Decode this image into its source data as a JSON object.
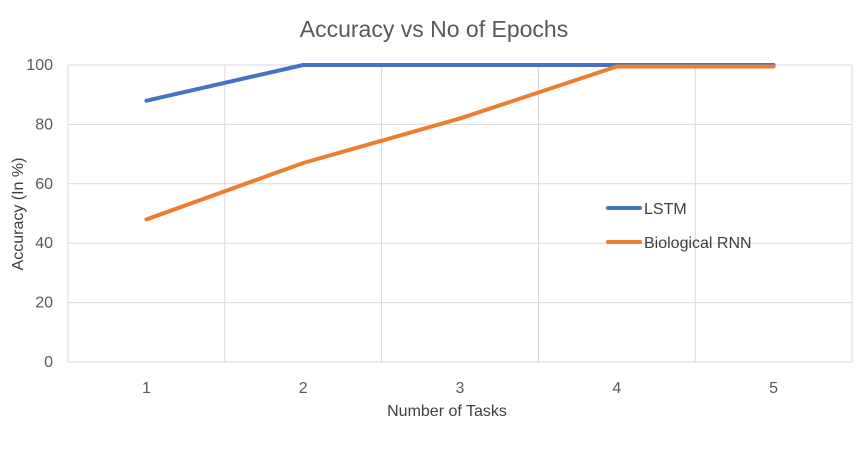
{
  "chart_data": {
    "type": "line",
    "title": "Accuracy vs No of Epochs",
    "xlabel": "Number of Tasks",
    "ylabel": "Accuracy (In %)",
    "categories": [
      "1",
      "2",
      "3",
      "4",
      "5"
    ],
    "x": [
      1,
      2,
      3,
      4,
      5
    ],
    "ylim": [
      0,
      100
    ],
    "yticks": [
      "0",
      "20",
      "40",
      "60",
      "80",
      "100"
    ],
    "grid": true,
    "legend": "right",
    "series": [
      {
        "name": "LSTM",
        "color": "#4472c4",
        "values": [
          88,
          100,
          100,
          100,
          100
        ]
      },
      {
        "name": "Biological RNN",
        "color": "#ed7d31",
        "values": [
          48,
          67,
          82,
          99.5,
          99.5
        ]
      }
    ]
  }
}
